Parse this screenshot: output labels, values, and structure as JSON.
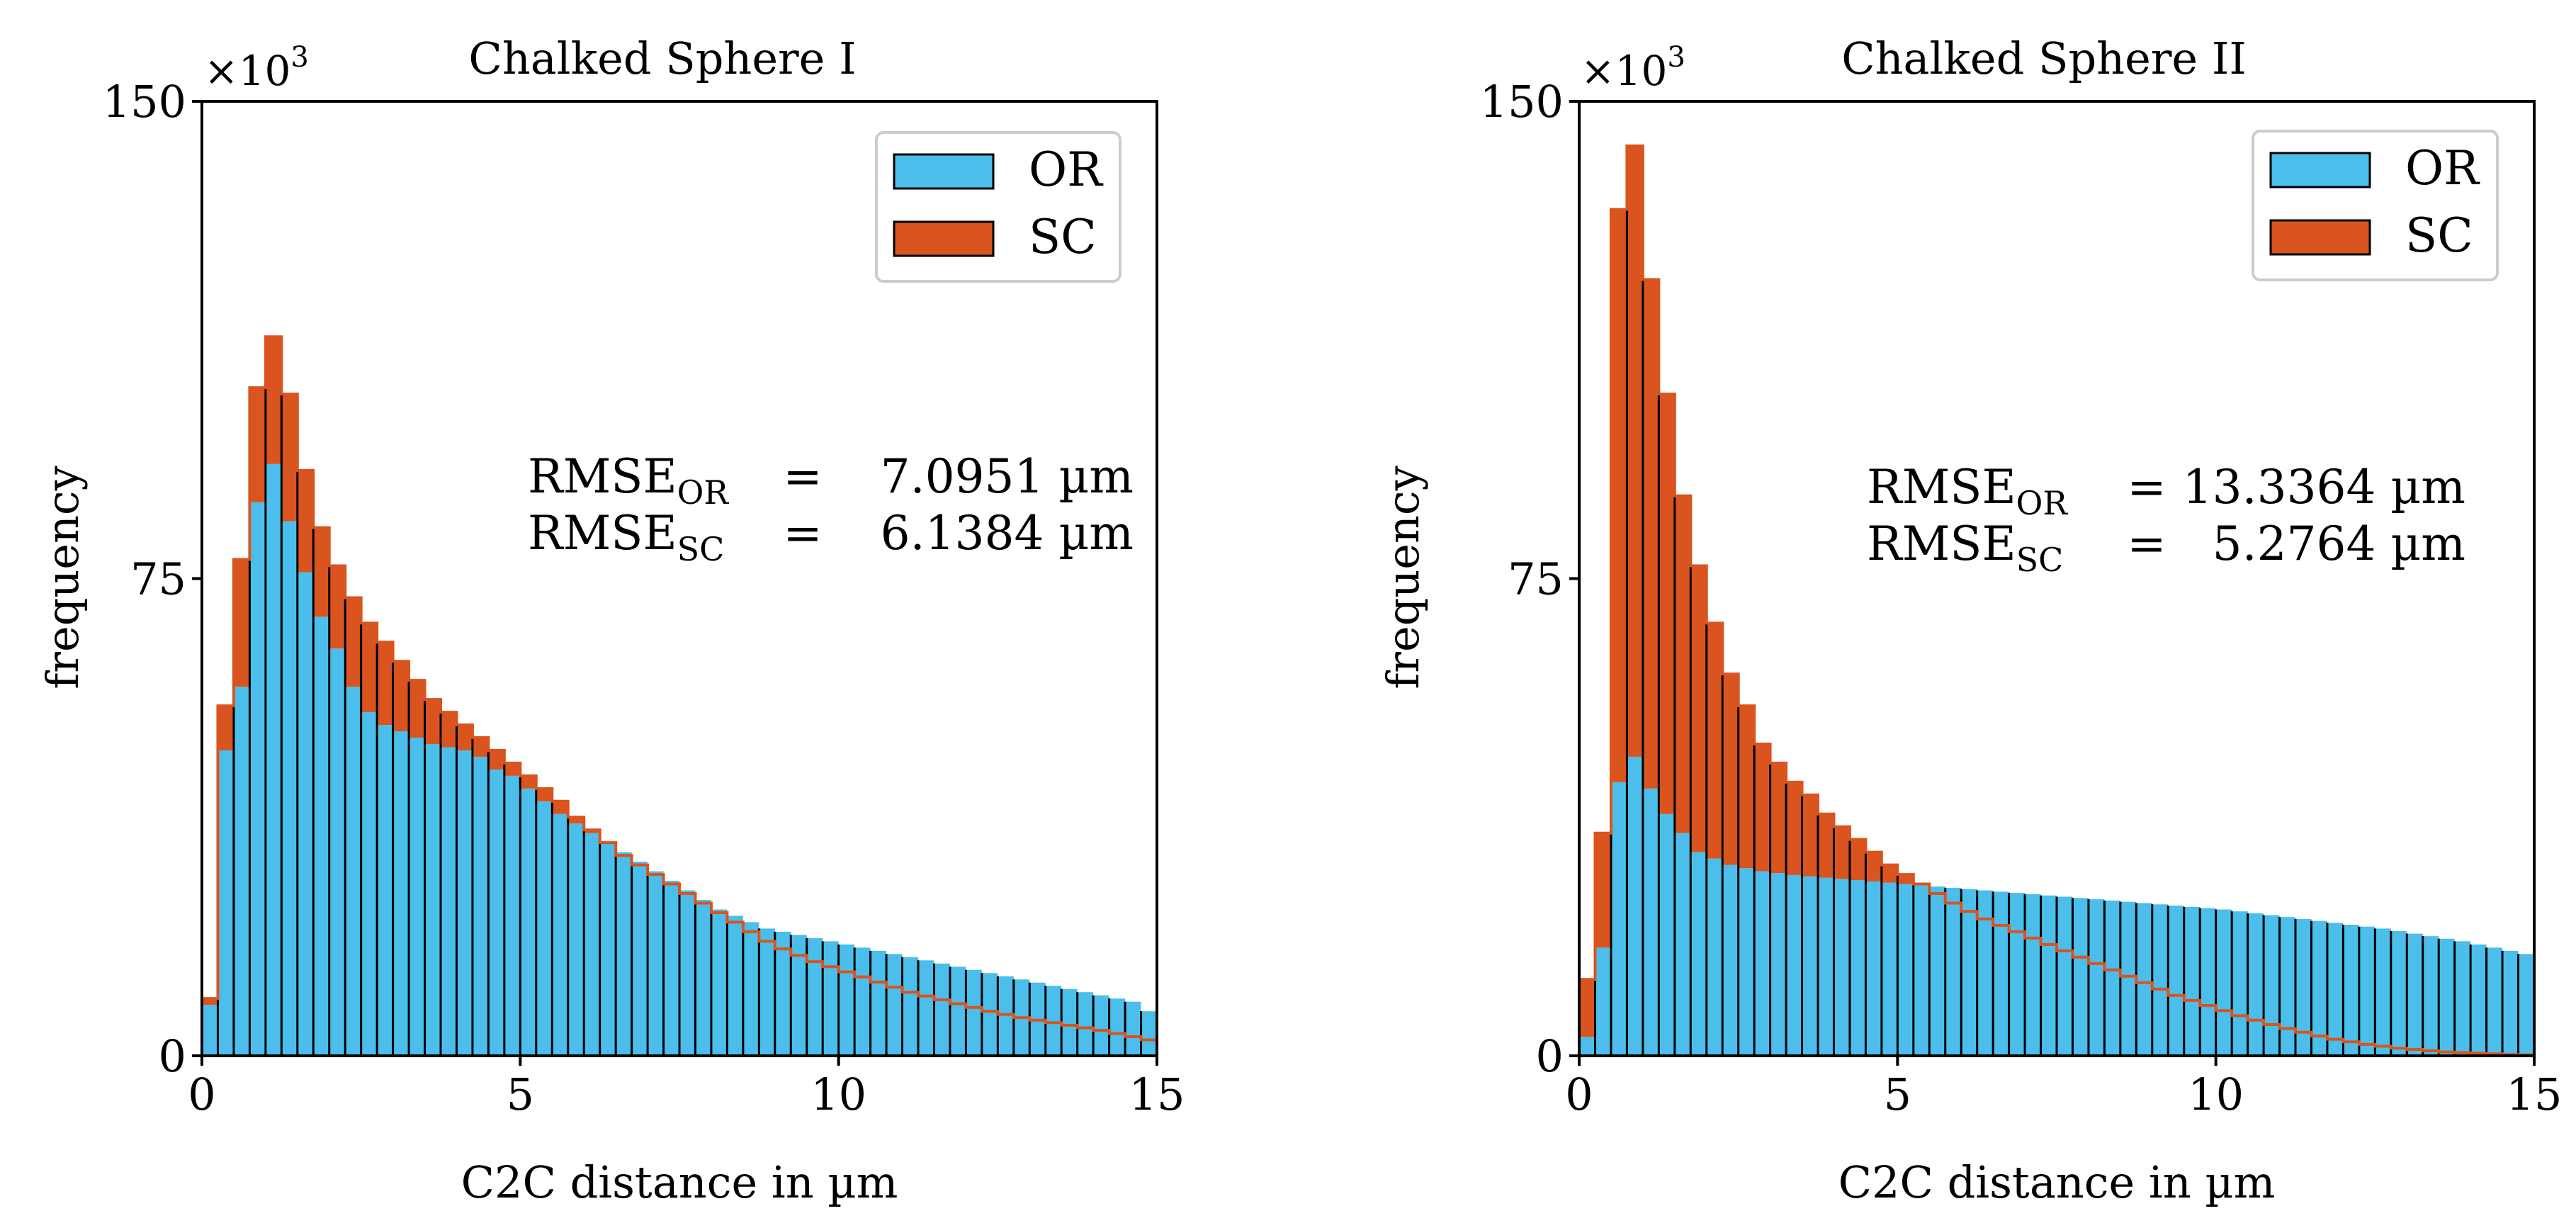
{
  "chart_data": [
    {
      "type": "bar",
      "title": "Chalked Sphere I",
      "xlabel": "C2C distance in µm",
      "ylabel": "frequency",
      "xlim": [
        0,
        15
      ],
      "ylim": [
        0,
        150000
      ],
      "xticks": [
        "0",
        "5",
        "10",
        "15"
      ],
      "yticks": [
        "0",
        "75",
        "150"
      ],
      "y_multiplier": "×10",
      "y_multiplier_exp": "3",
      "legend_position": "top-right",
      "bin_width": 0.25,
      "series": [
        {
          "name": "OR",
          "color": "#4bbeec",
          "values": [
            8000,
            48000,
            58000,
            87000,
            93000,
            84000,
            76000,
            69000,
            64000,
            58000,
            54000,
            52000,
            51000,
            50000,
            49000,
            48500,
            48000,
            47000,
            45000,
            44000,
            42000,
            40000,
            38000,
            36500,
            35000,
            33500,
            32000,
            30500,
            29000,
            27500,
            26000,
            24500,
            23000,
            22000,
            21000,
            20000,
            19500,
            19000,
            18500,
            18000,
            17500,
            17000,
            16500,
            16000,
            15500,
            15000,
            14500,
            14000,
            13500,
            13000,
            12500,
            12000,
            11500,
            11000,
            10500,
            10000,
            9500,
            9000,
            8500,
            7000
          ]
        },
        {
          "name": "SC",
          "color": "#d9541e",
          "values": [
            9000,
            55000,
            78000,
            105000,
            113000,
            104000,
            92000,
            83000,
            77000,
            72000,
            68000,
            65000,
            62000,
            59000,
            56000,
            54000,
            52000,
            50000,
            48000,
            46000,
            44000,
            42000,
            40000,
            37500,
            35500,
            33500,
            31500,
            30000,
            28500,
            27000,
            25500,
            24000,
            22500,
            21000,
            19500,
            18000,
            16800,
            15800,
            14800,
            14000,
            13200,
            12400,
            11600,
            10800,
            10000,
            9400,
            8800,
            8200,
            7600,
            7000,
            6500,
            6000,
            5600,
            5200,
            4800,
            4400,
            4000,
            3500,
            3000,
            2500
          ]
        }
      ],
      "annotations": {
        "rmse_label": "RMSE",
        "sub_or": "OR",
        "sub_sc": "SC",
        "eq": "=",
        "value_or": "7.0951 µm",
        "value_sc": "6.1384 µm"
      }
    },
    {
      "type": "bar",
      "title": "Chalked Sphere II",
      "xlabel": "C2C distance in µm",
      "ylabel": "frequency",
      "xlim": [
        0,
        15
      ],
      "ylim": [
        0,
        150000
      ],
      "xticks": [
        "0",
        "5",
        "10",
        "15"
      ],
      "yticks": [
        "0",
        "75",
        "150"
      ],
      "y_multiplier": "×10",
      "y_multiplier_exp": "3",
      "legend_position": "top-right",
      "bin_width": 0.25,
      "series": [
        {
          "name": "OR",
          "color": "#4bbeec",
          "values": [
            3000,
            17000,
            43000,
            47000,
            42000,
            38000,
            35000,
            32000,
            31000,
            30000,
            29500,
            29000,
            28700,
            28400,
            28200,
            28000,
            27800,
            27600,
            27400,
            27200,
            27000,
            26800,
            26600,
            26400,
            26200,
            26000,
            25800,
            25600,
            25400,
            25200,
            25000,
            24800,
            24600,
            24400,
            24200,
            24000,
            23800,
            23600,
            23400,
            23200,
            23000,
            22700,
            22400,
            22100,
            21800,
            21500,
            21200,
            20900,
            20600,
            20300,
            20000,
            19600,
            19200,
            18800,
            18400,
            18000,
            17500,
            17000,
            16500,
            16000
          ]
        },
        {
          "name": "SC",
          "color": "#d9541e",
          "values": [
            12000,
            35000,
            133000,
            143000,
            122000,
            104000,
            88000,
            77000,
            68000,
            60000,
            55000,
            49000,
            46000,
            43000,
            41000,
            38000,
            36000,
            34000,
            32000,
            30000,
            28500,
            27000,
            25500,
            24000,
            22700,
            21500,
            20500,
            19500,
            18500,
            17500,
            16500,
            15500,
            14500,
            13500,
            12500,
            11500,
            10500,
            9500,
            8700,
            7900,
            7100,
            6300,
            5600,
            4900,
            4300,
            3700,
            3100,
            2600,
            2200,
            1800,
            1500,
            1200,
            1000,
            800,
            600,
            500,
            400,
            300,
            200,
            150
          ]
        }
      ],
      "annotations": {
        "rmse_label": "RMSE",
        "sub_or": "OR",
        "sub_sc": "SC",
        "eq": "=",
        "value_or": "13.3364 µm",
        "value_sc": "5.2764 µm"
      }
    }
  ]
}
